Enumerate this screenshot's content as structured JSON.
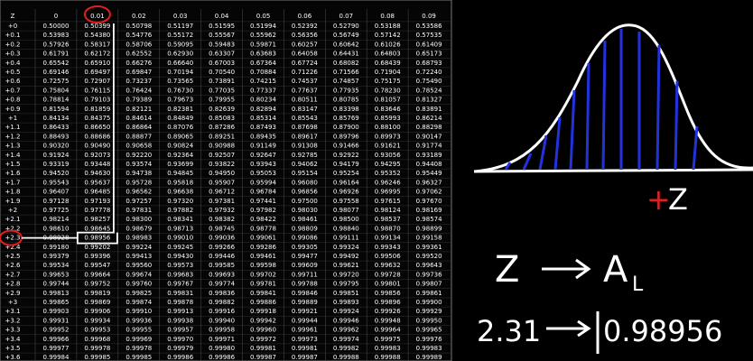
{
  "table": {
    "header": [
      "Z",
      "0",
      "0.01",
      "0.02",
      "0.03",
      "0.04",
      "0.05",
      "0.06",
      "0.07",
      "0.08",
      "0.09"
    ],
    "rows": [
      [
        "+0",
        "0.50000",
        "0.50399",
        "0.50798",
        "0.51197",
        "0.51595",
        "0.51994",
        "0.52392",
        "0.52790",
        "0.53188",
        "0.53586"
      ],
      [
        "+0.1",
        "0.53983",
        "0.54380",
        "0.54776",
        "0.55172",
        "0.55567",
        "0.55962",
        "0.56356",
        "0.56749",
        "0.57142",
        "0.57535"
      ],
      [
        "+0.2",
        "0.57926",
        "0.58317",
        "0.58706",
        "0.59095",
        "0.59483",
        "0.59871",
        "0.60257",
        "0.60642",
        "0.61026",
        "0.61409"
      ],
      [
        "+0.3",
        "0.61791",
        "0.62172",
        "0.62552",
        "0.62930",
        "0.63307",
        "0.63683",
        "0.64058",
        "0.64431",
        "0.64803",
        "0.65173"
      ],
      [
        "+0.4",
        "0.65542",
        "0.65910",
        "0.66276",
        "0.66640",
        "0.67003",
        "0.67364",
        "0.67724",
        "0.68082",
        "0.68439",
        "0.68793"
      ],
      [
        "+0.5",
        "0.69146",
        "0.69497",
        "0.69847",
        "0.70194",
        "0.70540",
        "0.70884",
        "0.71226",
        "0.71566",
        "0.71904",
        "0.72240"
      ],
      [
        "+0.6",
        "0.72575",
        "0.72907",
        "0.73237",
        "0.73565",
        "0.73891",
        "0.74215",
        "0.74537",
        "0.74857",
        "0.75175",
        "0.75490"
      ],
      [
        "+0.7",
        "0.75804",
        "0.76115",
        "0.76424",
        "0.76730",
        "0.77035",
        "0.77337",
        "0.77637",
        "0.77935",
        "0.78230",
        "0.78524"
      ],
      [
        "+0.8",
        "0.78814",
        "0.79103",
        "0.79389",
        "0.79673",
        "0.79955",
        "0.80234",
        "0.80511",
        "0.80785",
        "0.81057",
        "0.81327"
      ],
      [
        "+0.9",
        "0.81594",
        "0.81859",
        "0.82121",
        "0.82381",
        "0.82639",
        "0.82894",
        "0.83147",
        "0.83398",
        "0.83646",
        "0.83891"
      ],
      [
        "+1",
        "0.84134",
        "0.84375",
        "0.84614",
        "0.84849",
        "0.85083",
        "0.85314",
        "0.85543",
        "0.85769",
        "0.85993",
        "0.86214"
      ],
      [
        "+1.1",
        "0.86433",
        "0.86650",
        "0.86864",
        "0.87076",
        "0.87286",
        "0.87493",
        "0.87698",
        "0.87900",
        "0.88100",
        "0.88298"
      ],
      [
        "+1.2",
        "0.88493",
        "0.88686",
        "0.88877",
        "0.89065",
        "0.89251",
        "0.89435",
        "0.89617",
        "0.89796",
        "0.89973",
        "0.90147"
      ],
      [
        "+1.3",
        "0.90320",
        "0.90490",
        "0.90658",
        "0.90824",
        "0.90988",
        "0.91149",
        "0.91308",
        "0.91466",
        "0.91621",
        "0.91774"
      ],
      [
        "+1.4",
        "0.91924",
        "0.92073",
        "0.92220",
        "0.92364",
        "0.92507",
        "0.92647",
        "0.92785",
        "0.92922",
        "0.93056",
        "0.93189"
      ],
      [
        "+1.5",
        "0.93319",
        "0.93448",
        "0.93574",
        "0.93699",
        "0.93822",
        "0.93943",
        "0.94062",
        "0.94179",
        "0.94295",
        "0.94408"
      ],
      [
        "+1.6",
        "0.94520",
        "0.94630",
        "0.94738",
        "0.94845",
        "0.94950",
        "0.95053",
        "0.95154",
        "0.95254",
        "0.95352",
        "0.95449"
      ],
      [
        "+1.7",
        "0.95543",
        "0.95637",
        "0.95728",
        "0.95818",
        "0.95907",
        "0.95994",
        "0.96080",
        "0.96164",
        "0.96246",
        "0.96327"
      ],
      [
        "+1.8",
        "0.96407",
        "0.96485",
        "0.96562",
        "0.96638",
        "0.96712",
        "0.96784",
        "0.96856",
        "0.96926",
        "0.96995",
        "0.97062"
      ],
      [
        "+1.9",
        "0.97128",
        "0.97193",
        "0.97257",
        "0.97320",
        "0.97381",
        "0.97441",
        "0.97500",
        "0.97558",
        "0.97615",
        "0.97670"
      ],
      [
        "+2",
        "0.97725",
        "0.97778",
        "0.97831",
        "0.97882",
        "0.97932",
        "0.97982",
        "0.98030",
        "0.98077",
        "0.98124",
        "0.98169"
      ],
      [
        "+2.1",
        "0.98214",
        "0.98257",
        "0.98300",
        "0.98341",
        "0.98382",
        "0.98422",
        "0.98461",
        "0.98500",
        "0.98537",
        "0.98574"
      ],
      [
        "+2.2",
        "0.98610",
        "0.98645",
        "0.98679",
        "0.98713",
        "0.98745",
        "0.98778",
        "0.98809",
        "0.98840",
        "0.98870",
        "0.98899"
      ],
      [
        "+2.3",
        "0.98928",
        "0.98956",
        "0.98983",
        "0.99010",
        "0.99036",
        "0.99061",
        "0.99086",
        "0.99111",
        "0.99134",
        "0.99158"
      ],
      [
        "+2.4",
        "0.99180",
        "0.99202",
        "0.99224",
        "0.99245",
        "0.99266",
        "0.99286",
        "0.99305",
        "0.99324",
        "0.99343",
        "0.99361"
      ],
      [
        "+2.5",
        "0.99379",
        "0.99396",
        "0.99413",
        "0.99430",
        "0.99446",
        "0.99461",
        "0.99477",
        "0.99492",
        "0.99506",
        "0.99520"
      ],
      [
        "+2.6",
        "0.99534",
        "0.99547",
        "0.99560",
        "0.99573",
        "0.99585",
        "0.99598",
        "0.99609",
        "0.99621",
        "0.99632",
        "0.99643"
      ],
      [
        "+2.7",
        "0.99653",
        "0.99664",
        "0.99674",
        "0.99683",
        "0.99693",
        "0.99702",
        "0.99711",
        "0.99720",
        "0.99728",
        "0.99736"
      ],
      [
        "+2.8",
        "0.99744",
        "0.99752",
        "0.99760",
        "0.99767",
        "0.99774",
        "0.99781",
        "0.99788",
        "0.99795",
        "0.99801",
        "0.99807"
      ],
      [
        "+2.9",
        "0.99813",
        "0.99819",
        "0.99825",
        "0.99831",
        "0.99836",
        "0.99841",
        "0.99846",
        "0.99851",
        "0.99856",
        "0.99861"
      ],
      [
        "+3",
        "0.99865",
        "0.99869",
        "0.99874",
        "0.99878",
        "0.99882",
        "0.99886",
        "0.99889",
        "0.99893",
        "0.99896",
        "0.99900"
      ],
      [
        "+3.1",
        "0.99903",
        "0.99906",
        "0.99910",
        "0.99913",
        "0.99916",
        "0.99918",
        "0.99921",
        "0.99924",
        "0.99926",
        "0.99929"
      ],
      [
        "+3.2",
        "0.99931",
        "0.99934",
        "0.99936",
        "0.99938",
        "0.99940",
        "0.99942",
        "0.99944",
        "0.99946",
        "0.99948",
        "0.99950"
      ],
      [
        "+3.3",
        "0.99952",
        "0.99953",
        "0.99955",
        "0.99957",
        "0.99958",
        "0.99960",
        "0.99961",
        "0.99962",
        "0.99964",
        "0.99965"
      ],
      [
        "+3.4",
        "0.99966",
        "0.99968",
        "0.99969",
        "0.99970",
        "0.99971",
        "0.99972",
        "0.99973",
        "0.99974",
        "0.99975",
        "0.99976"
      ],
      [
        "+3.5",
        "0.99977",
        "0.99978",
        "0.99978",
        "0.99979",
        "0.99980",
        "0.99981",
        "0.99981",
        "0.99982",
        "0.99983",
        "0.99983"
      ],
      [
        "+3.6",
        "0.99984",
        "0.99985",
        "0.99985",
        "0.99986",
        "0.99986",
        "0.99987",
        "0.99987",
        "0.99988",
        "0.99988",
        "0.99989"
      ]
    ]
  },
  "notes": {
    "plus": "+",
    "z": "Z",
    "formula_left": "Z",
    "formula_right": "A",
    "formula_sub": "L",
    "example_z": "2.31",
    "example_a": "0.98956"
  }
}
